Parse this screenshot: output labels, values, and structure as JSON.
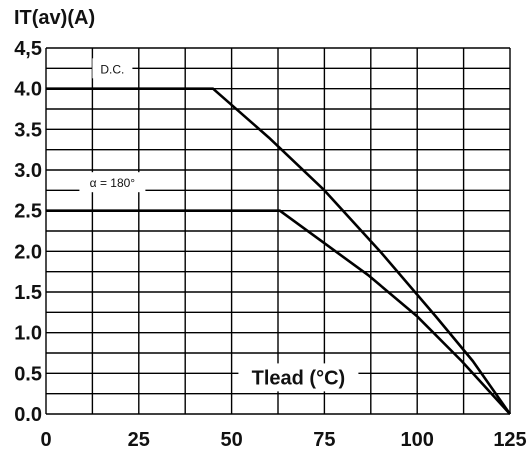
{
  "chart_data": {
    "type": "line",
    "title": "IT(av)(A)",
    "xlabel": "Tlead (°C)",
    "ylabel": "IT(av)(A)",
    "xlim": [
      0,
      125
    ],
    "ylim": [
      0,
      4.5
    ],
    "xticks": [
      0,
      25,
      50,
      75,
      100,
      125
    ],
    "xtick_labels": [
      "0",
      "25",
      "50",
      "75",
      "100",
      "125"
    ],
    "yticks": [
      0,
      0.5,
      1.0,
      1.5,
      2.0,
      2.5,
      3.0,
      3.5,
      4.0,
      4.5
    ],
    "ytick_labels": [
      "0.0",
      "0.5",
      "1.0",
      "1.5",
      "2.0",
      "2.5",
      "3.0",
      "3.5",
      "4.0",
      "4,5"
    ],
    "grid": true,
    "series": [
      {
        "name": "D.C.",
        "x": [
          0,
          45,
          60,
          75,
          90,
          105,
          115,
          125
        ],
        "y": [
          4.0,
          4.0,
          3.4,
          2.75,
          2.0,
          1.2,
          0.65,
          0.0
        ]
      },
      {
        "name": "α = 180°",
        "x": [
          0,
          63,
          75,
          87,
          100,
          112,
          125
        ],
        "y": [
          2.5,
          2.5,
          2.1,
          1.7,
          1.2,
          0.65,
          0.0
        ]
      }
    ]
  }
}
